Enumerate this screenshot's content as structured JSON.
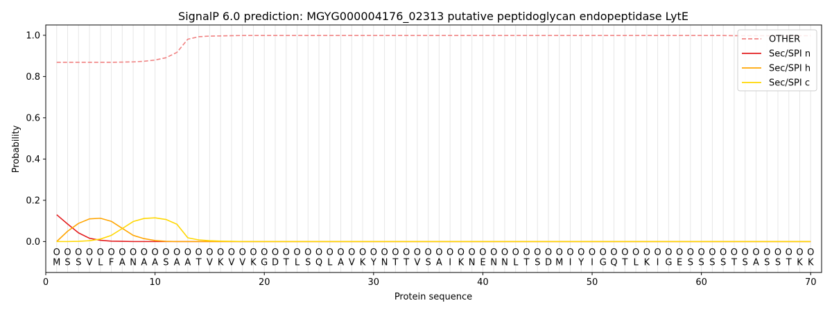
{
  "chart_data": {
    "type": "line",
    "title": "SignalP 6.0 prediction: MGYG000004176_02313 putative peptidoglycan endopeptidase LytE",
    "xlabel": "Protein sequence",
    "ylabel": "Probability",
    "xlim": [
      0,
      71
    ],
    "ylim": [
      -0.15,
      1.05
    ],
    "xticks": [
      0,
      10,
      20,
      30,
      40,
      50,
      60,
      70
    ],
    "yticks": [
      "0.0",
      "0.2",
      "0.4",
      "0.6",
      "0.8",
      "1.0"
    ],
    "ytick_values": [
      0.0,
      0.2,
      0.4,
      0.6,
      0.8,
      1.0
    ],
    "grid": "vertical lines at each residue",
    "legend_position": "top-right",
    "sequence": "MSSVLFANAASAATVKVVKGDTLSQLAVKYNTTVSAIKNENNLTSDMIYIGQTLKIGESSSSTSASSTKK",
    "region_label": "O",
    "series": [
      {
        "name": "OTHER",
        "color": "#f08080",
        "dash": true,
        "values": [
          0.869,
          0.869,
          0.869,
          0.869,
          0.869,
          0.869,
          0.87,
          0.871,
          0.874,
          0.88,
          0.891,
          0.917,
          0.981,
          0.993,
          0.996,
          0.997,
          0.998,
          0.999,
          0.999,
          0.999,
          0.999,
          0.999,
          0.999,
          0.999,
          0.999,
          0.999,
          0.999,
          0.999,
          0.999,
          0.999,
          0.999,
          0.999,
          0.999,
          0.999,
          0.999,
          0.999,
          0.999,
          0.999,
          0.999,
          0.999,
          0.999,
          0.999,
          0.999,
          0.999,
          0.999,
          0.999,
          0.999,
          0.999,
          0.999,
          0.999,
          0.999,
          0.999,
          0.999,
          0.999,
          0.999,
          0.999,
          0.999,
          0.999,
          0.999,
          0.999,
          0.999,
          0.999,
          0.998,
          0.998,
          0.998,
          0.998,
          0.998,
          0.998,
          0.998,
          0.998
        ]
      },
      {
        "name": "Sec/SPI n",
        "color": "#e31a1c",
        "dash": false,
        "values": [
          0.13,
          0.085,
          0.042,
          0.016,
          0.006,
          0.002,
          0.001,
          0,
          0,
          0,
          0,
          0,
          0,
          0,
          0,
          0,
          0,
          0,
          0,
          0,
          0,
          0,
          0,
          0,
          0,
          0,
          0,
          0,
          0,
          0,
          0,
          0,
          0,
          0,
          0,
          0,
          0,
          0,
          0,
          0,
          0,
          0,
          0,
          0,
          0,
          0,
          0,
          0,
          0,
          0,
          0,
          0,
          0,
          0,
          0,
          0,
          0,
          0,
          0,
          0,
          0,
          0,
          0,
          0,
          0,
          0,
          0,
          0,
          0,
          0
        ]
      },
      {
        "name": "Sec/SPI h",
        "color": "#ffa500",
        "dash": false,
        "values": [
          0.0,
          0.05,
          0.088,
          0.11,
          0.113,
          0.098,
          0.064,
          0.03,
          0.014,
          0.005,
          0.001,
          0,
          0,
          0,
          0,
          0,
          0,
          0,
          0,
          0,
          0,
          0,
          0,
          0,
          0,
          0,
          0,
          0,
          0,
          0,
          0,
          0,
          0,
          0,
          0,
          0,
          0,
          0,
          0,
          0,
          0,
          0,
          0,
          0,
          0,
          0,
          0,
          0,
          0,
          0,
          0,
          0,
          0,
          0,
          0,
          0,
          0,
          0,
          0,
          0,
          0,
          0,
          0,
          0,
          0,
          0,
          0,
          0,
          0,
          0
        ]
      },
      {
        "name": "Sec/SPI c",
        "color": "#ffd700",
        "dash": false,
        "values": [
          0.0,
          0.0,
          0.001,
          0.004,
          0.012,
          0.03,
          0.063,
          0.097,
          0.112,
          0.115,
          0.107,
          0.084,
          0.018,
          0.008,
          0.004,
          0.002,
          0.001,
          0,
          0,
          0,
          0,
          0,
          0,
          0,
          0,
          0,
          0,
          0,
          0,
          0,
          0,
          0,
          0,
          0,
          0,
          0,
          0,
          0,
          0,
          0,
          0,
          0,
          0,
          0,
          0,
          0,
          0,
          0,
          0,
          0,
          0,
          0,
          0,
          0,
          0,
          0,
          0,
          0,
          0,
          0,
          0,
          0,
          0,
          0,
          0,
          0,
          0,
          0,
          0,
          0
        ]
      }
    ]
  }
}
